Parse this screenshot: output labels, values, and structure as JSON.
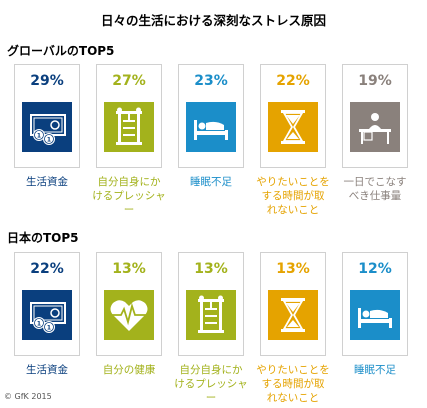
{
  "title": "日々の生活における深刻なストレス原因",
  "copyright": "© GfK 2015",
  "chart_data": [
    {
      "type": "bar",
      "title": "グローバルのTOP5",
      "categories": [
        "生活資金",
        "自分自身にかけるプレッシャー",
        "睡眠不足",
        "やりたいことをする時間が取れないこと",
        "一日でこなすべき仕事量"
      ],
      "values": [
        29,
        27,
        23,
        22,
        19
      ],
      "labels": [
        "29%",
        "27%",
        "23%",
        "22%",
        "19%"
      ],
      "colors": [
        "#0a3f7e",
        "#a3b21c",
        "#1b8ec9",
        "#e5a300",
        "#8a817c"
      ],
      "icons": [
        "money-icon",
        "torture-rack-icon",
        "bed-icon",
        "hourglass-icon",
        "desk-worker-icon"
      ]
    },
    {
      "type": "bar",
      "title": "日本のTOP5",
      "categories": [
        "生活資金",
        "自分の健康",
        "自分自身にかけるプレッシャー",
        "やりたいことをする時間が取れないこと",
        "睡眠不足"
      ],
      "values": [
        22,
        13,
        13,
        13,
        12
      ],
      "labels": [
        "22%",
        "13%",
        "13%",
        "13%",
        "12%"
      ],
      "colors": [
        "#0a3f7e",
        "#a3b21c",
        "#a3b21c",
        "#e5a300",
        "#1b8ec9"
      ],
      "icons": [
        "money-icon",
        "heartbeat-icon",
        "torture-rack-icon",
        "hourglass-icon",
        "bed-icon"
      ]
    }
  ],
  "label_lines": [
    [
      [
        "生活資金"
      ],
      [
        "自分自身にか",
        "けるプレッシャー"
      ],
      [
        "睡眠不足"
      ],
      [
        "やりたいことを",
        "する時間が取",
        "れないこと"
      ],
      [
        "一日でこなす",
        "べき仕事量"
      ]
    ],
    [
      [
        "生活資金"
      ],
      [
        "自分の健康"
      ],
      [
        "自分自身にか",
        "けるプレッシャー"
      ],
      [
        "やりたいことを",
        "する時間が取",
        "れないこと"
      ],
      [
        "睡眠不足"
      ]
    ]
  ]
}
